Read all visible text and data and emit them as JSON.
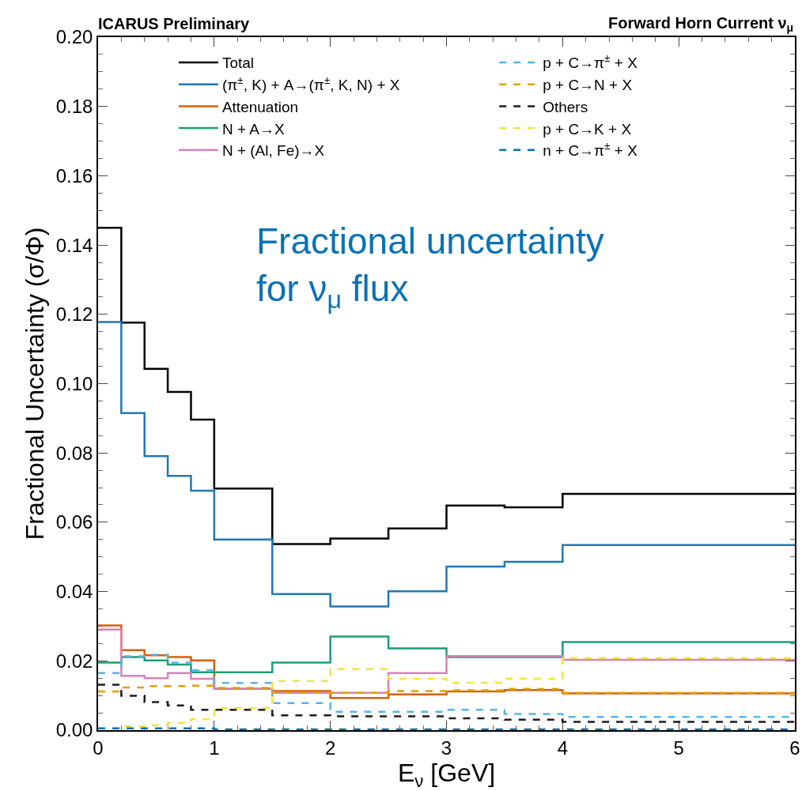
{
  "chart_data": {
    "type": "histogram",
    "title": "ICARUS Preliminary",
    "annotations": [
      "Forward Horn Current ν$_{μ}$",
      "Fractional uncertainty\nfor ν$_{μ}$ flux"
    ],
    "xlabel": "E$_{ν}$ [GeV]",
    "ylabel": "Fractional Uncertainty (σ/Φ)",
    "bins": [
      0,
      0.2,
      0.4,
      0.6,
      0.8,
      1.0,
      1.5,
      2.0,
      2.5,
      3.0,
      3.5,
      4.0,
      6.0
    ],
    "series": [
      {
        "name": "Total",
        "color": "#000000",
        "line_style": "solid",
        "values": [
          0.145,
          0.1176,
          0.1043,
          0.0976,
          0.0896,
          0.0697,
          0.0537,
          0.0553,
          0.0582,
          0.0648,
          0.0643,
          0.0682
        ]
      },
      {
        "name": "(π$^{±}$, K) + A→(π$^{±}$, K, N) + X",
        "color": "#1f78b4",
        "line_style": "solid",
        "values": [
          0.1178,
          0.0915,
          0.0791,
          0.0734,
          0.0691,
          0.055,
          0.0393,
          0.0357,
          0.0401,
          0.0472,
          0.0486,
          0.0534
        ]
      },
      {
        "name": "Attenuation",
        "color": "#d95f02",
        "line_style": "solid",
        "values": [
          0.0302,
          0.0231,
          0.0216,
          0.0211,
          0.0201,
          0.0119,
          0.0113,
          0.0093,
          0.0103,
          0.0112,
          0.0116,
          0.0106
        ]
      },
      {
        "name": "N + A→X",
        "color": "#1b9e77",
        "line_style": "solid",
        "values": [
          0.0195,
          0.0211,
          0.0201,
          0.0189,
          0.0167,
          0.0167,
          0.0195,
          0.027,
          0.0236,
          0.0211,
          0.0211,
          0.0254
        ]
      },
      {
        "name": "N + (Al, Fe)→X",
        "color": "#d981b9",
        "line_style": "solid",
        "values": [
          0.029,
          0.0157,
          0.015,
          0.0165,
          0.0148,
          0.012,
          0.0108,
          0.0108,
          0.0165,
          0.0214,
          0.0214,
          0.0203
        ]
      },
      {
        "name": "p + C→π$^{±}$ + X",
        "color": "#56b4e9",
        "line_style": "dashed",
        "values": [
          0.0165,
          0.0213,
          0.0218,
          0.0195,
          0.0173,
          0.0136,
          0.0078,
          0.0053,
          0.0053,
          0.0059,
          0.0047,
          0.0038
        ]
      },
      {
        "name": "p + C→N + X",
        "color": "#e69f00",
        "line_style": "dashed",
        "values": [
          0.0112,
          0.0123,
          0.0127,
          0.0127,
          0.0128,
          0.0122,
          0.0108,
          0.0108,
          0.0113,
          0.0115,
          0.0119,
          0.0108
        ]
      },
      {
        "name": "Others",
        "color": "#1c1c1c",
        "line_style": "dashed",
        "values": [
          0.0131,
          0.0099,
          0.0081,
          0.0071,
          0.0059,
          0.0059,
          0.0043,
          0.004,
          0.004,
          0.0034,
          0.003,
          0.0024
        ]
      },
      {
        "name": "p + C→K + X",
        "color": "#f0e442",
        "line_style": "dashed",
        "values": [
          0.0005,
          0.0011,
          0.0014,
          0.0021,
          0.0032,
          0.0064,
          0.0142,
          0.0176,
          0.0148,
          0.0137,
          0.0148,
          0.0208
        ]
      },
      {
        "name": "n + C→π$^{±}$ + X",
        "color": "#0072b2",
        "line_style": "dashed",
        "values": [
          0.0005,
          0.0005,
          0.0005,
          0.0005,
          0.0005,
          0.0002,
          0.0002,
          0.0002,
          0.0002,
          0.0002,
          0.0002,
          0.0002
        ]
      }
    ],
    "xlim": [
      0,
      6
    ],
    "xticks": [
      0,
      1,
      2,
      3,
      4,
      5,
      6
    ],
    "ylim": [
      0,
      0.2
    ],
    "yticks": [
      {
        "value": 0,
        "label": "0.00"
      },
      {
        "value": 0.02,
        "label": "0.02"
      },
      {
        "value": 0.04,
        "label": "0.04"
      },
      {
        "value": 0.06,
        "label": "0.06"
      },
      {
        "value": 0.08,
        "label": "0.08"
      },
      {
        "value": 0.1,
        "label": "0.10"
      },
      {
        "value": 0.12,
        "label": "0.12"
      },
      {
        "value": 0.14,
        "label": "0.14"
      },
      {
        "value": 0.16,
        "label": "0.16"
      },
      {
        "value": 0.18,
        "label": "0.18"
      },
      {
        "value": 0.2,
        "label": "0.20"
      }
    ],
    "grid": false,
    "legend": "top"
  }
}
